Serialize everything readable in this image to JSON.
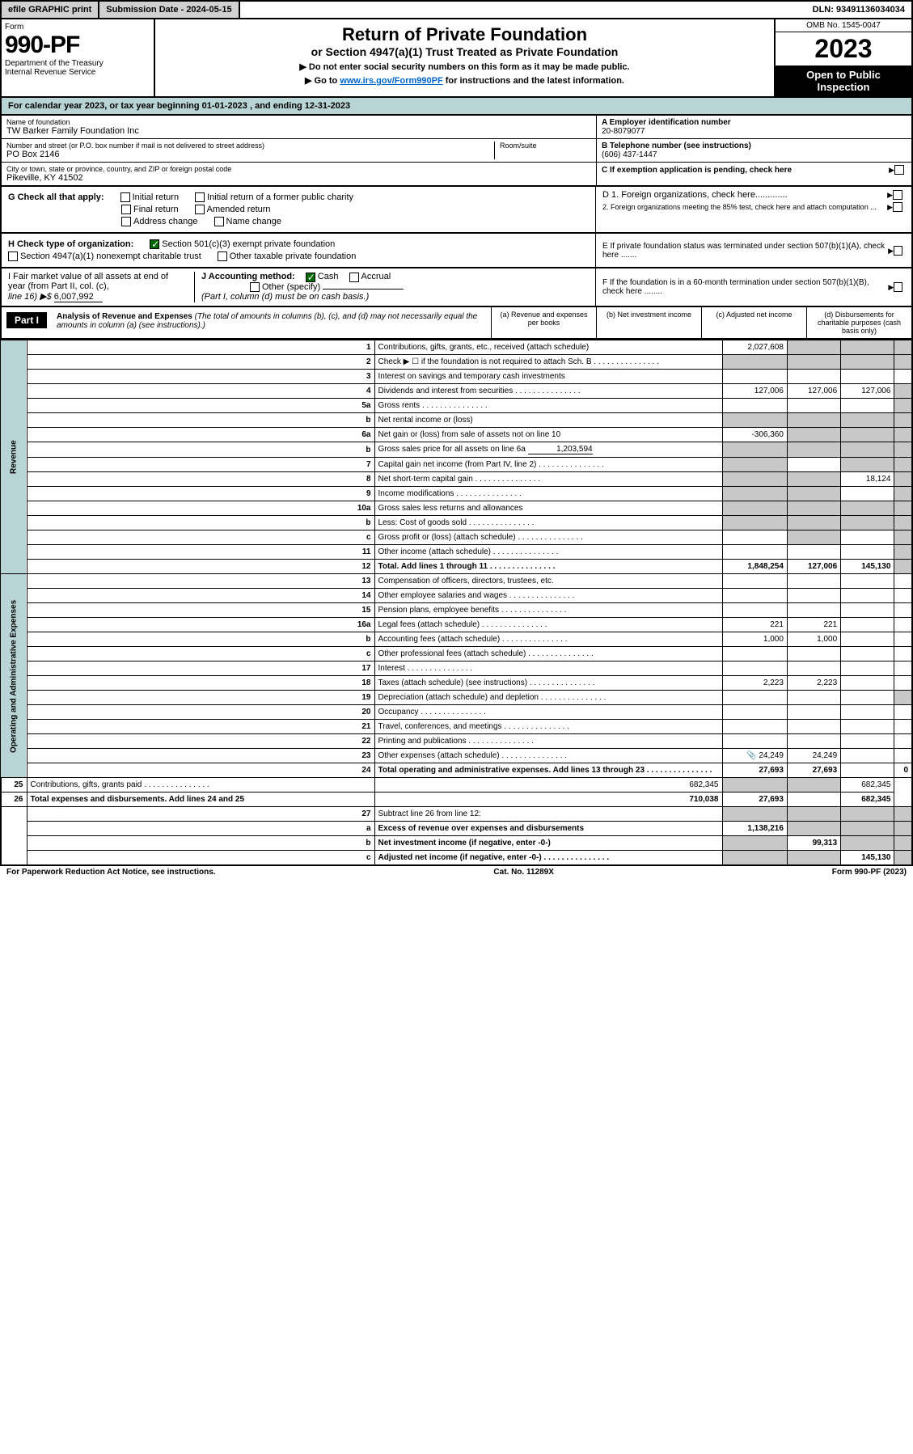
{
  "topbar": {
    "efile": "efile GRAPHIC print",
    "submit": "Submission Date - 2024-05-15",
    "dln": "DLN: 93491136034034"
  },
  "header": {
    "form": "Form",
    "form_num": "990-PF",
    "dept": "Department of the Treasury",
    "irs": "Internal Revenue Service",
    "title": "Return of Private Foundation",
    "subtitle": "or Section 4947(a)(1) Trust Treated as Private Foundation",
    "note1": "▶ Do not enter social security numbers on this form as it may be made public.",
    "note2_pre": "▶ Go to ",
    "note2_link": "www.irs.gov/Form990PF",
    "note2_post": " for instructions and the latest information.",
    "omb": "OMB No. 1545-0047",
    "year": "2023",
    "open": "Open to Public Inspection"
  },
  "cal": {
    "text": "For calendar year 2023, or tax year beginning 01-01-2023                          , and ending 12-31-2023"
  },
  "meta": {
    "name_lbl": "Name of foundation",
    "name": "TW Barker Family Foundation Inc",
    "addr_lbl": "Number and street (or P.O. box number if mail is not delivered to street address)",
    "addr": "PO Box 2146",
    "room_lbl": "Room/suite",
    "city_lbl": "City or town, state or province, country, and ZIP or foreign postal code",
    "city": "Pikeville, KY  41502",
    "ein_lbl": "A Employer identification number",
    "ein": "20-8079077",
    "tel_lbl": "B Telephone number (see instructions)",
    "tel": "(606) 437-1447",
    "c": "C If exemption application is pending, check here",
    "g_lbl": "G Check all that apply:",
    "g1": "Initial return",
    "g2": "Initial return of a former public charity",
    "g3": "Final return",
    "g4": "Amended return",
    "g5": "Address change",
    "g6": "Name change",
    "d1": "D 1. Foreign organizations, check here.............",
    "d2": "2. Foreign organizations meeting the 85% test, check here and attach computation ...",
    "h_lbl": "H Check type of organization:",
    "h1": "Section 501(c)(3) exempt private foundation",
    "h2": "Section 4947(a)(1) nonexempt charitable trust",
    "h3": "Other taxable private foundation",
    "e": "E  If private foundation status was terminated under section 507(b)(1)(A), check here .......",
    "i": "I Fair market value of all assets at end of year (from Part II, col. (c),",
    "i_line": "line 16) ▶$ ",
    "i_val": "6,007,992",
    "j": "J Accounting method:",
    "j_cash": "Cash",
    "j_acc": "Accrual",
    "j_oth": "Other (specify)",
    "j_note": "(Part I, column (d) must be on cash basis.)",
    "f": "F  If the foundation is in a 60-month termination under section 507(b)(1)(B), check here ........"
  },
  "part1": {
    "label": "Part I",
    "title": "Analysis of Revenue and Expenses",
    "desc": "(The total of amounts in columns (b), (c), and (d) may not necessarily equal the amounts in column (a) (see instructions).)",
    "col_a": "(a)  Revenue and expenses per books",
    "col_b": "(b)  Net investment income",
    "col_c": "(c)  Adjusted net income",
    "col_d": "(d)  Disbursements for charitable purposes (cash basis only)"
  },
  "rows": [
    {
      "n": "1",
      "lbl": "Contributions, gifts, grants, etc., received (attach schedule)",
      "a": "2,027,608",
      "b": "",
      "c": "",
      "d": "",
      "gb": true,
      "gc": true,
      "gd": true
    },
    {
      "n": "2",
      "lbl": "Check ▶ ☐ if the foundation is not required to attach Sch. B",
      "dots": true,
      "allgray": true
    },
    {
      "n": "3",
      "lbl": "Interest on savings and temporary cash investments",
      "a": "",
      "b": "",
      "c": "",
      "d": ""
    },
    {
      "n": "4",
      "lbl": "Dividends and interest from securities",
      "dots": true,
      "a": "127,006",
      "b": "127,006",
      "c": "127,006",
      "d": "",
      "gd": true
    },
    {
      "n": "5a",
      "lbl": "Gross rents",
      "dots": true,
      "a": "",
      "b": "",
      "c": "",
      "d": "",
      "gd": true
    },
    {
      "n": "b",
      "lbl": "Net rental income or (loss)",
      "allgray": true
    },
    {
      "n": "6a",
      "lbl": "Net gain or (loss) from sale of assets not on line 10",
      "a": "-306,360",
      "gb": true,
      "gc": true,
      "gd": true
    },
    {
      "n": "b",
      "lbl": "Gross sales price for all assets on line 6a",
      "inline": "1,203,594",
      "allgray": true
    },
    {
      "n": "7",
      "lbl": "Capital gain net income (from Part IV, line 2)",
      "dots": true,
      "ga": true,
      "b": "",
      "gc": true,
      "gd": true
    },
    {
      "n": "8",
      "lbl": "Net short-term capital gain",
      "dots": true,
      "ga": true,
      "gb": true,
      "c": "18,124",
      "gd": true
    },
    {
      "n": "9",
      "lbl": "Income modifications",
      "dots": true,
      "ga": true,
      "gb": true,
      "c": "",
      "gd": true
    },
    {
      "n": "10a",
      "lbl": "Gross sales less returns and allowances",
      "allgray": true
    },
    {
      "n": "b",
      "lbl": "Less: Cost of goods sold",
      "dots": true,
      "allgray": true
    },
    {
      "n": "c",
      "lbl": "Gross profit or (loss) (attach schedule)",
      "dots": true,
      "a": "",
      "gb": true,
      "c": "",
      "gd": true
    },
    {
      "n": "11",
      "lbl": "Other income (attach schedule)",
      "dots": true,
      "a": "",
      "b": "",
      "c": "",
      "gd": true
    },
    {
      "n": "12",
      "lbl": "Total. Add lines 1 through 11",
      "dots": true,
      "bold": true,
      "a": "1,848,254",
      "b": "127,006",
      "c": "145,130",
      "gd": true
    },
    {
      "n": "13",
      "lbl": "Compensation of officers, directors, trustees, etc.",
      "a": "",
      "b": "",
      "c": "",
      "d": "",
      "sec": "exp"
    },
    {
      "n": "14",
      "lbl": "Other employee salaries and wages",
      "dots": true,
      "a": "",
      "b": "",
      "c": "",
      "d": ""
    },
    {
      "n": "15",
      "lbl": "Pension plans, employee benefits",
      "dots": true,
      "a": "",
      "b": "",
      "c": "",
      "d": ""
    },
    {
      "n": "16a",
      "lbl": "Legal fees (attach schedule)",
      "dots": true,
      "a": "221",
      "b": "221",
      "c": "",
      "d": ""
    },
    {
      "n": "b",
      "lbl": "Accounting fees (attach schedule)",
      "dots": true,
      "a": "1,000",
      "b": "1,000",
      "c": "",
      "d": ""
    },
    {
      "n": "c",
      "lbl": "Other professional fees (attach schedule)",
      "dots": true,
      "a": "",
      "b": "",
      "c": "",
      "d": ""
    },
    {
      "n": "17",
      "lbl": "Interest",
      "dots": true,
      "a": "",
      "b": "",
      "c": "",
      "d": ""
    },
    {
      "n": "18",
      "lbl": "Taxes (attach schedule) (see instructions)",
      "dots": true,
      "a": "2,223",
      "b": "2,223",
      "c": "",
      "d": ""
    },
    {
      "n": "19",
      "lbl": "Depreciation (attach schedule) and depletion",
      "dots": true,
      "a": "",
      "b": "",
      "c": "",
      "gd": true
    },
    {
      "n": "20",
      "lbl": "Occupancy",
      "dots": true,
      "a": "",
      "b": "",
      "c": "",
      "d": ""
    },
    {
      "n": "21",
      "lbl": "Travel, conferences, and meetings",
      "dots": true,
      "a": "",
      "b": "",
      "c": "",
      "d": ""
    },
    {
      "n": "22",
      "lbl": "Printing and publications",
      "dots": true,
      "a": "",
      "b": "",
      "c": "",
      "d": ""
    },
    {
      "n": "23",
      "lbl": "Other expenses (attach schedule)",
      "dots": true,
      "a": "24,249",
      "b": "24,249",
      "c": "",
      "d": "",
      "icon": true
    },
    {
      "n": "24",
      "lbl": "Total operating and administrative expenses. Add lines 13 through 23",
      "dots": true,
      "bold": true,
      "a": "27,693",
      "b": "27,693",
      "c": "",
      "d": "0"
    },
    {
      "n": "25",
      "lbl": "Contributions, gifts, grants paid",
      "dots": true,
      "a": "682,345",
      "gb": true,
      "gc": true,
      "d": "682,345"
    },
    {
      "n": "26",
      "lbl": "Total expenses and disbursements. Add lines 24 and 25",
      "bold": true,
      "a": "710,038",
      "b": "27,693",
      "c": "",
      "d": "682,345"
    },
    {
      "n": "27",
      "lbl": "Subtract line 26 from line 12:",
      "allgray": true,
      "sec": "end"
    },
    {
      "n": "a",
      "lbl": "Excess of revenue over expenses and disbursements",
      "bold": true,
      "a": "1,138,216",
      "gb": true,
      "gc": true,
      "gd": true
    },
    {
      "n": "b",
      "lbl": "Net investment income (if negative, enter -0-)",
      "bold": true,
      "ga": true,
      "b": "99,313",
      "gc": true,
      "gd": true
    },
    {
      "n": "c",
      "lbl": "Adjusted net income (if negative, enter -0-)",
      "dots": true,
      "bold": true,
      "ga": true,
      "gb": true,
      "c": "145,130",
      "gd": true
    }
  ],
  "side": {
    "rev": "Revenue",
    "exp": "Operating and Administrative Expenses"
  },
  "footer": {
    "left": "For Paperwork Reduction Act Notice, see instructions.",
    "mid": "Cat. No. 11289X",
    "right": "Form 990-PF (2023)"
  },
  "colors": {
    "teal": "#b8d4d4",
    "gray": "#c8c8c8",
    "link": "#0066cc"
  }
}
